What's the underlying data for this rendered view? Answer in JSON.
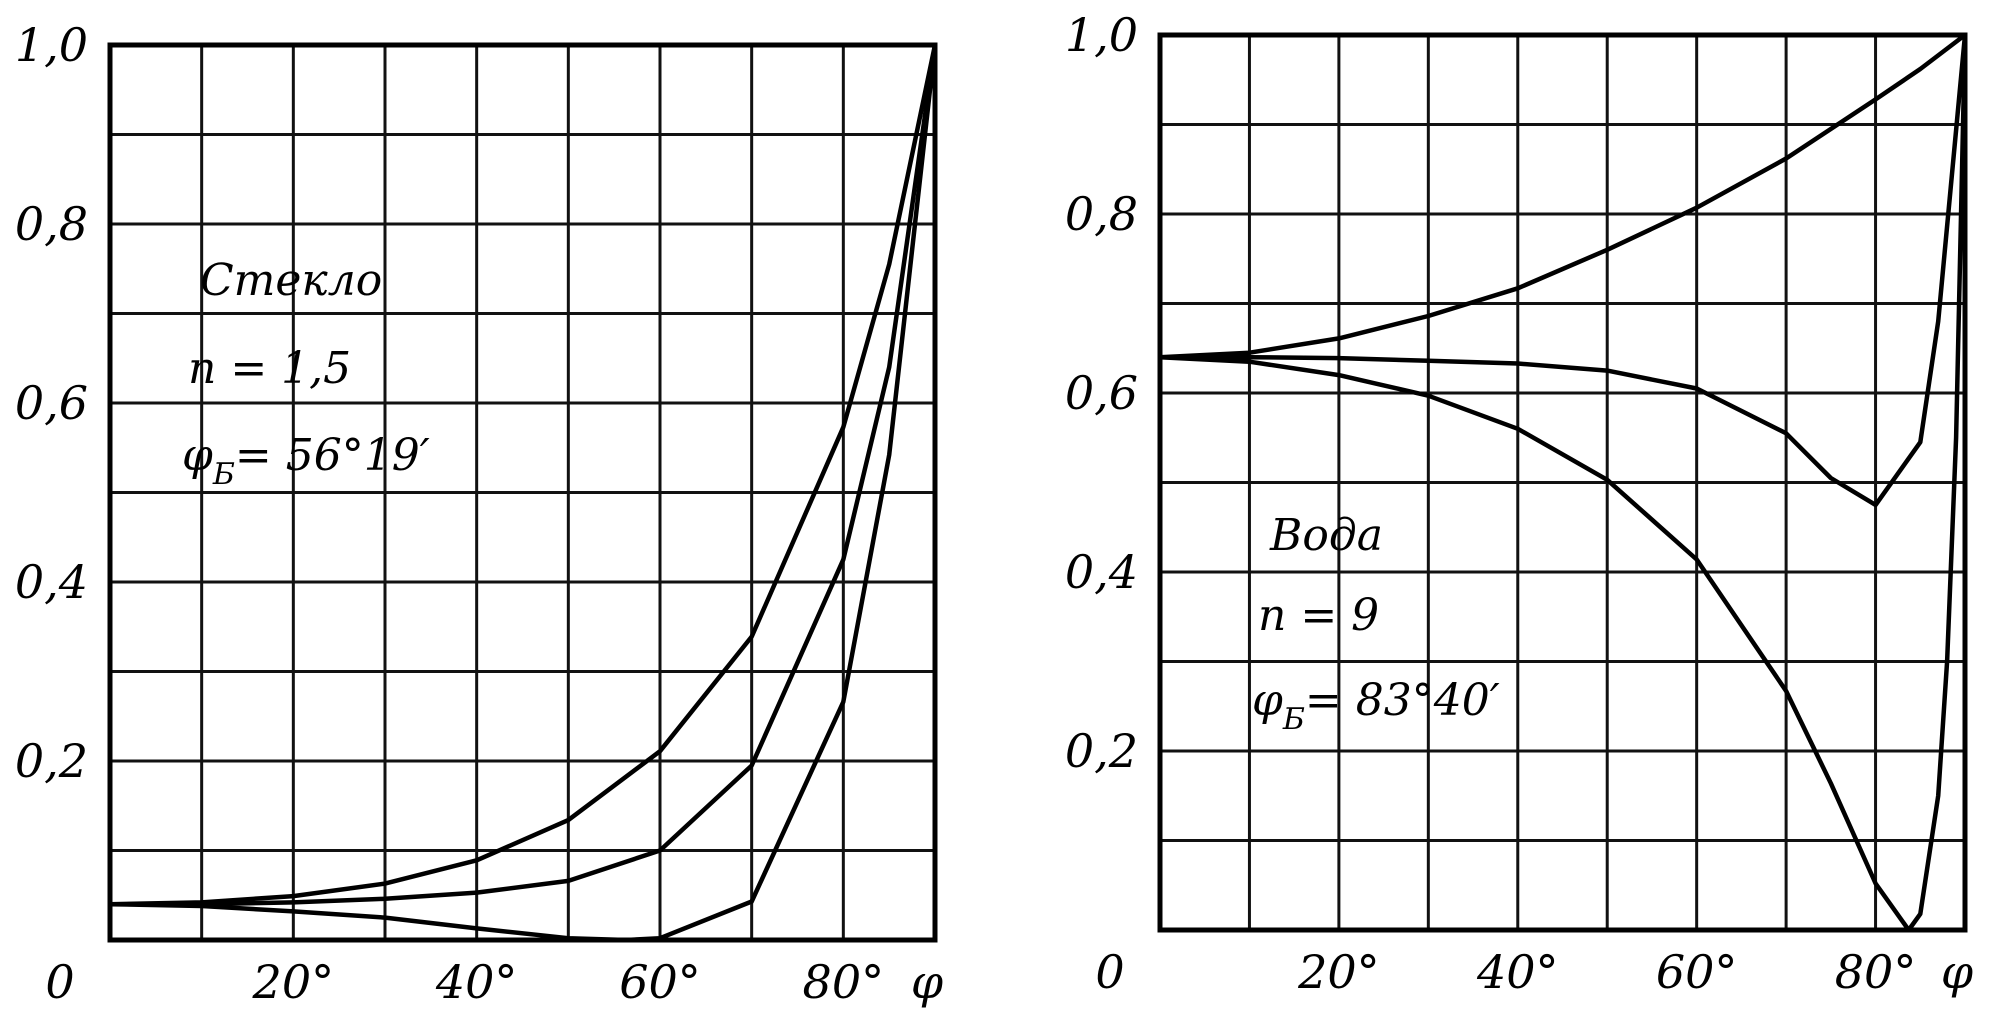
{
  "chart_data": [
    {
      "type": "line",
      "xlabel": "φ",
      "xlim": [
        0,
        90
      ],
      "ylim": [
        0,
        1.0
      ],
      "y_zero_label": "0",
      "x_ticks": [
        {
          "value": 20,
          "label": "20°"
        },
        {
          "value": 40,
          "label": "40°"
        },
        {
          "value": 60,
          "label": "60°"
        },
        {
          "value": 80,
          "label": "80°"
        }
      ],
      "y_ticks": [
        {
          "value": 0.2,
          "label": "0,2"
        },
        {
          "value": 0.4,
          "label": "0,4"
        },
        {
          "value": 0.6,
          "label": "0,6"
        },
        {
          "value": 0.8,
          "label": "0,8"
        },
        {
          "value": 1.0,
          "label": "1,0"
        }
      ],
      "grid": true,
      "annotations": {
        "material": "Стекло",
        "index": "n = 1,5",
        "brewster_symbol": "φ",
        "brewster_sub": "Б",
        "brewster_value": "= 56°19′"
      },
      "series": [
        {
          "x": [
            0,
            10,
            20,
            30,
            40,
            50,
            60,
            70,
            80,
            85,
            90
          ],
          "y": [
            0.04,
            0.042,
            0.049,
            0.063,
            0.089,
            0.134,
            0.211,
            0.339,
            0.573,
            0.755,
            1.0
          ]
        },
        {
          "x": [
            0,
            10,
            20,
            30,
            40,
            50,
            60,
            70,
            80,
            85,
            90
          ],
          "y": [
            0.04,
            0.04,
            0.042,
            0.046,
            0.053,
            0.066,
            0.1,
            0.195,
            0.425,
            0.64,
            1.0
          ]
        },
        {
          "x": [
            0,
            10,
            20,
            30,
            40,
            50,
            56.3,
            60,
            70,
            80,
            85,
            90
          ],
          "y": [
            0.04,
            0.038,
            0.032,
            0.025,
            0.013,
            0.002,
            0.0,
            0.002,
            0.043,
            0.266,
            0.542,
            1.0
          ]
        }
      ]
    },
    {
      "type": "line",
      "xlabel": "φ",
      "xlim": [
        0,
        90
      ],
      "ylim": [
        0,
        1.0
      ],
      "y_zero_label": "0",
      "x_ticks": [
        {
          "value": 20,
          "label": "20°"
        },
        {
          "value": 40,
          "label": "40°"
        },
        {
          "value": 60,
          "label": "60°"
        },
        {
          "value": 80,
          "label": "80°"
        }
      ],
      "y_ticks": [
        {
          "value": 0.2,
          "label": "0,2"
        },
        {
          "value": 0.4,
          "label": "0,4"
        },
        {
          "value": 0.6,
          "label": "0,6"
        },
        {
          "value": 0.8,
          "label": "0,8"
        },
        {
          "value": 1.0,
          "label": "1,0"
        }
      ],
      "grid": true,
      "annotations": {
        "material": "Вода",
        "index": "n = 9",
        "brewster_symbol": "φ",
        "brewster_sub": "Б",
        "brewster_value": "= 83°40′"
      },
      "series": [
        {
          "x": [
            0,
            10,
            20,
            30,
            40,
            50,
            60,
            70,
            80,
            85,
            90
          ],
          "y": [
            0.64,
            0.645,
            0.661,
            0.686,
            0.717,
            0.76,
            0.807,
            0.862,
            0.928,
            0.962,
            1.0
          ]
        },
        {
          "x": [
            0,
            10,
            20,
            30,
            40,
            50,
            60,
            70,
            75,
            80,
            85,
            87,
            90
          ],
          "y": [
            0.64,
            0.64,
            0.639,
            0.636,
            0.633,
            0.625,
            0.605,
            0.555,
            0.505,
            0.475,
            0.545,
            0.68,
            1.0
          ]
        },
        {
          "x": [
            0,
            10,
            20,
            30,
            40,
            50,
            60,
            70,
            75,
            80,
            83.7,
            85,
            87,
            88,
            89,
            90
          ],
          "y": [
            0.64,
            0.635,
            0.62,
            0.597,
            0.56,
            0.503,
            0.414,
            0.267,
            0.164,
            0.052,
            0.0,
            0.018,
            0.15,
            0.3,
            0.55,
            1.0
          ]
        }
      ]
    }
  ]
}
